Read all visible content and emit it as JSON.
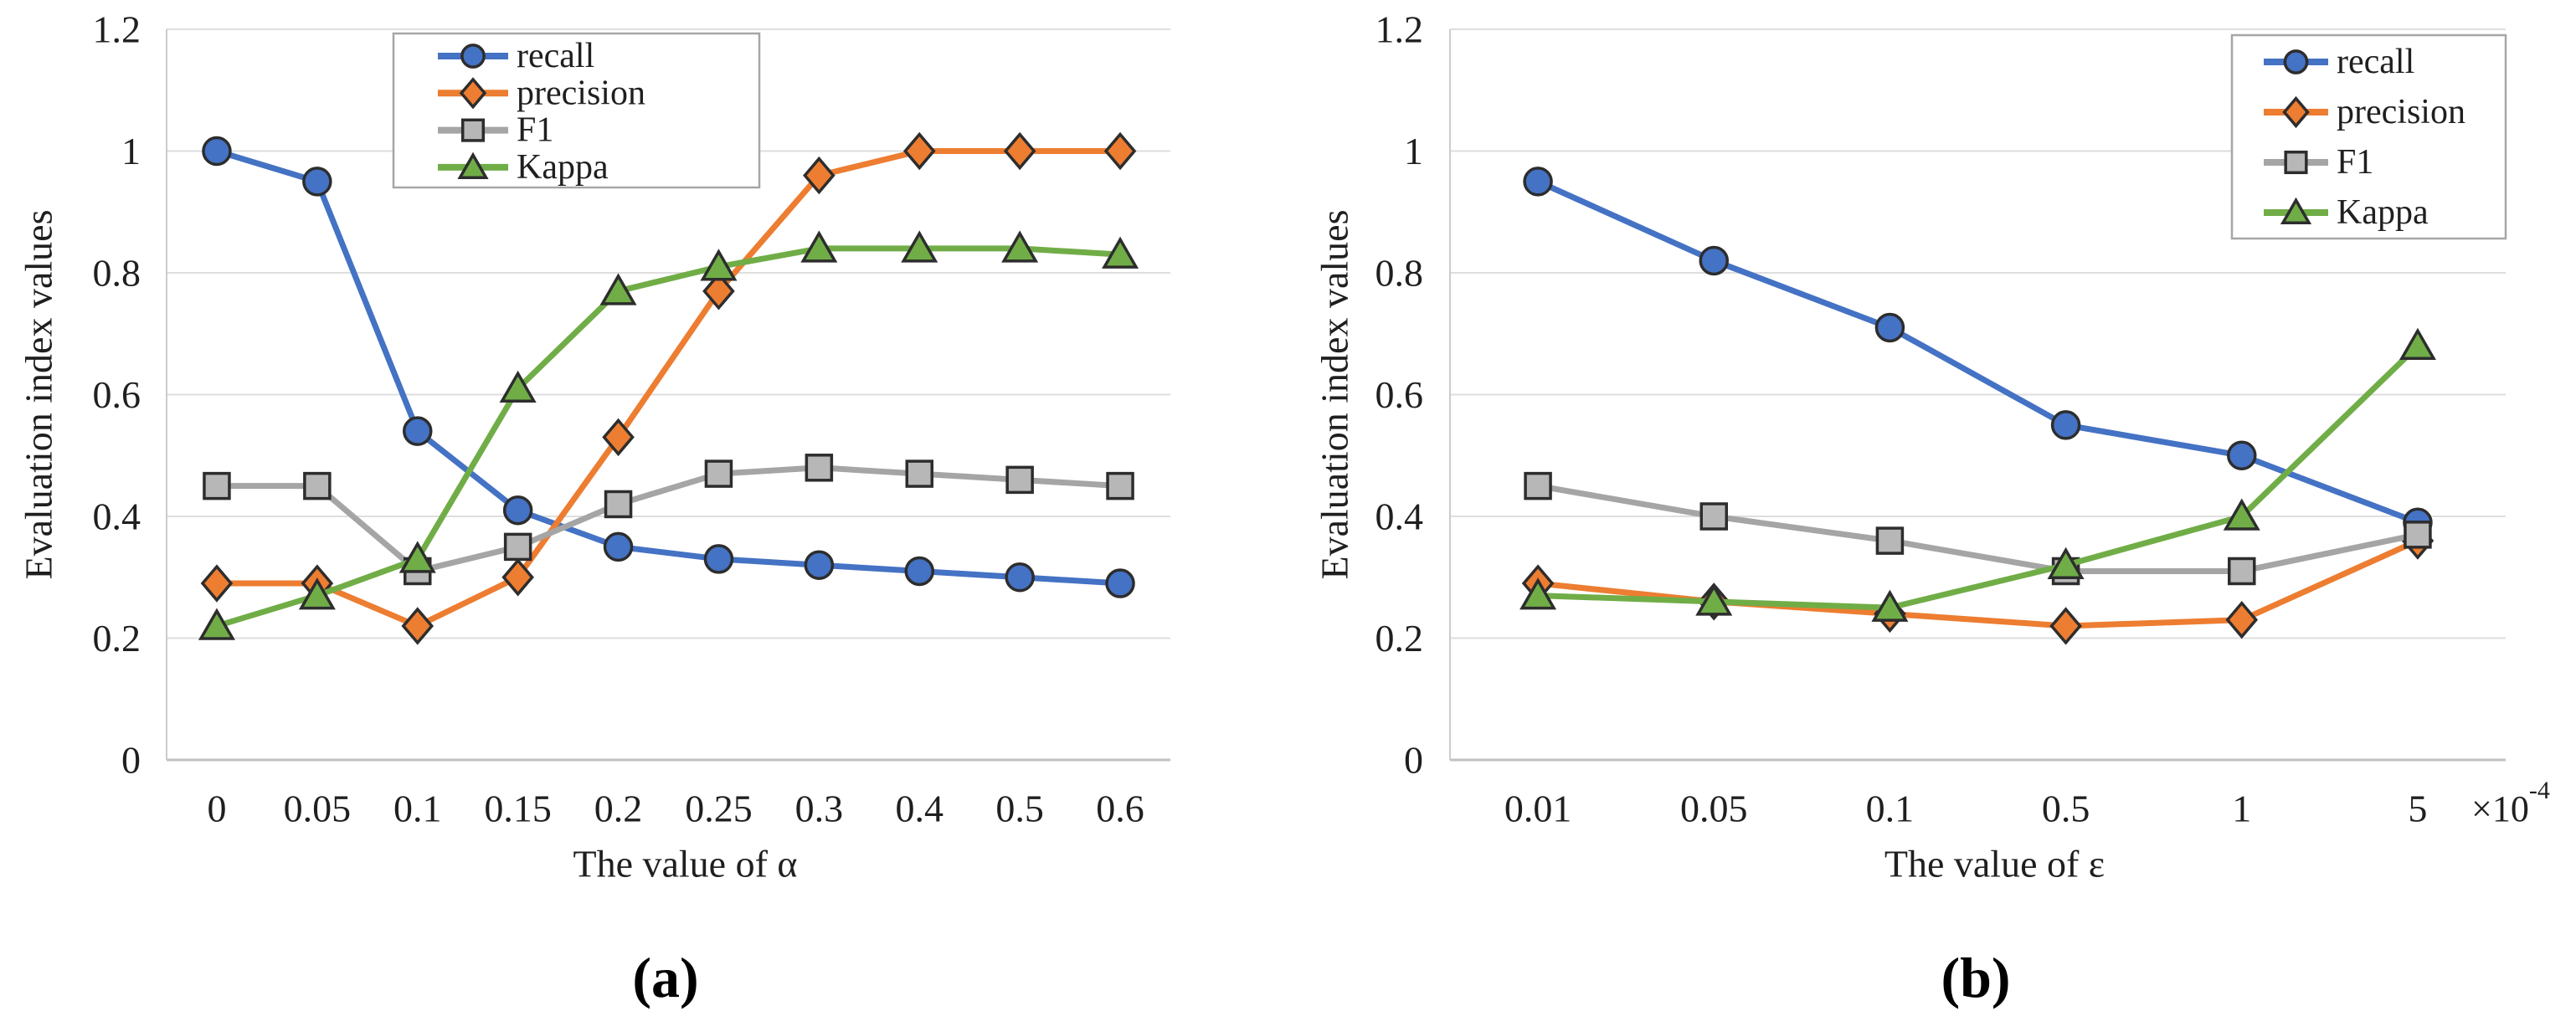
{
  "figure": {
    "background": "#ffffff",
    "text_color": "#1f1f1f",
    "gridline_color": "#dedede",
    "axis_line_color": "#c0c0c0",
    "plot_border_color": "#cccccc",
    "legend_border_color": "#a6a6a6",
    "marker_outline_color": "#2d2d2d"
  },
  "chart_data": [
    {
      "id": "a",
      "type": "line",
      "caption": "(a)",
      "xlabel": "The value of α",
      "ylabel": "Evaluation index values",
      "categories": [
        "0",
        "0.05",
        "0.1",
        "0.15",
        "0.2",
        "0.25",
        "0.3",
        "0.4",
        "0.5",
        "0.6"
      ],
      "yticks": [
        0,
        0.2,
        0.4,
        0.6,
        0.8,
        1,
        1.2
      ],
      "ytick_labels": [
        "0",
        "0.2",
        "0.4",
        "0.6",
        "0.8",
        "1",
        "1.2"
      ],
      "ylim": [
        0,
        1.2
      ],
      "grid": true,
      "legend_position": "top-center",
      "series": [
        {
          "name": "recall",
          "marker": "circle",
          "color": "#4472C4",
          "marker_fill": "#4472C4",
          "values": [
            1.0,
            0.95,
            0.54,
            0.41,
            0.35,
            0.33,
            0.32,
            0.31,
            0.3,
            0.29
          ]
        },
        {
          "name": "precision",
          "marker": "diamond",
          "color": "#ED7D31",
          "marker_fill": "#ED7D31",
          "values": [
            0.29,
            0.29,
            0.22,
            0.3,
            0.53,
            0.77,
            0.96,
            1.0,
            1.0,
            1.0
          ]
        },
        {
          "name": "F1",
          "marker": "square",
          "color": "#A5A5A5",
          "marker_fill": "#B7B7B7",
          "values": [
            0.45,
            0.45,
            0.31,
            0.35,
            0.42,
            0.47,
            0.48,
            0.47,
            0.46,
            0.45
          ]
        },
        {
          "name": "Kappa",
          "marker": "triangle",
          "color": "#70AD47",
          "marker_fill": "#70AD47",
          "values": [
            0.22,
            0.27,
            0.33,
            0.61,
            0.77,
            0.81,
            0.84,
            0.84,
            0.84,
            0.83
          ]
        }
      ]
    },
    {
      "id": "b",
      "type": "line",
      "caption": "(b)",
      "xlabel": "The value of ε",
      "ylabel": "Evaluation index values",
      "x_multiplier": {
        "base": "×10",
        "exponent": "-4"
      },
      "categories": [
        "0.01",
        "0.05",
        "0.1",
        "0.5",
        "1",
        "5"
      ],
      "yticks": [
        0,
        0.2,
        0.4,
        0.6,
        0.8,
        1,
        1.2
      ],
      "ytick_labels": [
        "0",
        "0.2",
        "0.4",
        "0.6",
        "0.8",
        "1",
        "1.2"
      ],
      "ylim": [
        0,
        1.2
      ],
      "grid": true,
      "legend_position": "top-right",
      "series": [
        {
          "name": "recall",
          "marker": "circle",
          "color": "#4472C4",
          "marker_fill": "#4472C4",
          "values": [
            0.95,
            0.82,
            0.71,
            0.55,
            0.5,
            0.39
          ]
        },
        {
          "name": "precision",
          "marker": "diamond",
          "color": "#ED7D31",
          "marker_fill": "#ED7D31",
          "values": [
            0.29,
            0.26,
            0.24,
            0.22,
            0.23,
            0.36
          ]
        },
        {
          "name": "F1",
          "marker": "square",
          "color": "#A5A5A5",
          "marker_fill": "#B7B7B7",
          "values": [
            0.45,
            0.4,
            0.36,
            0.31,
            0.31,
            0.37
          ]
        },
        {
          "name": "Kappa",
          "marker": "triangle",
          "color": "#70AD47",
          "marker_fill": "#70AD47",
          "values": [
            0.27,
            0.26,
            0.25,
            0.32,
            0.4,
            0.68
          ]
        }
      ]
    }
  ]
}
